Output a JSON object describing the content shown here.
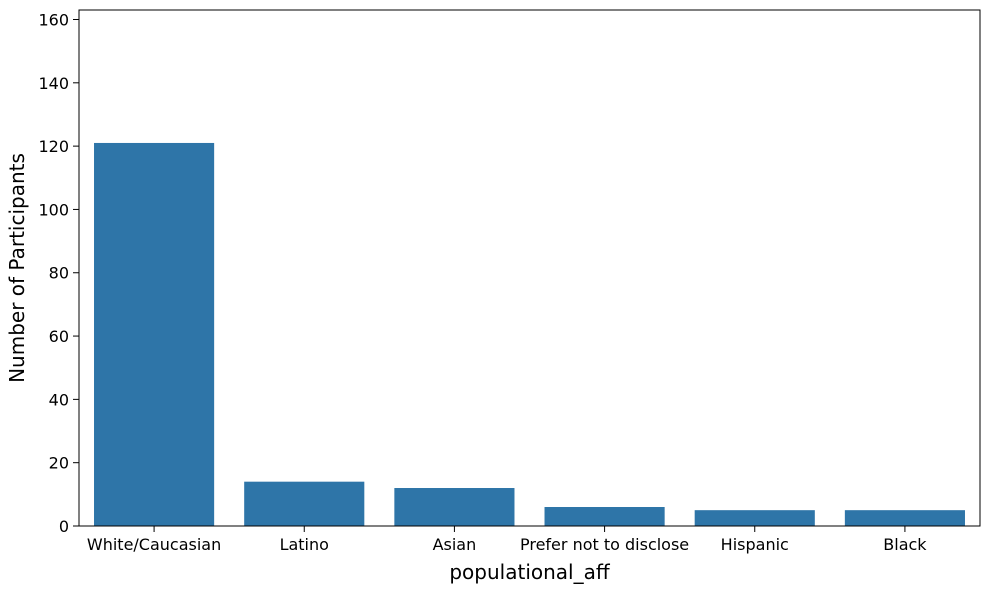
{
  "chart_data": {
    "type": "bar",
    "title": "",
    "xlabel": "populational_aff",
    "ylabel": "Number of Participants",
    "categories": [
      "White/Caucasian",
      "Latino",
      "Asian",
      "Prefer not to disclose",
      "Hispanic",
      "Black"
    ],
    "values": [
      121,
      14,
      12,
      6,
      5,
      5
    ],
    "ylim": [
      0,
      163
    ],
    "yticks": [
      0,
      20,
      40,
      60,
      80,
      100,
      120,
      140,
      160
    ],
    "grid": false,
    "bar_color": "#2e75a8"
  }
}
